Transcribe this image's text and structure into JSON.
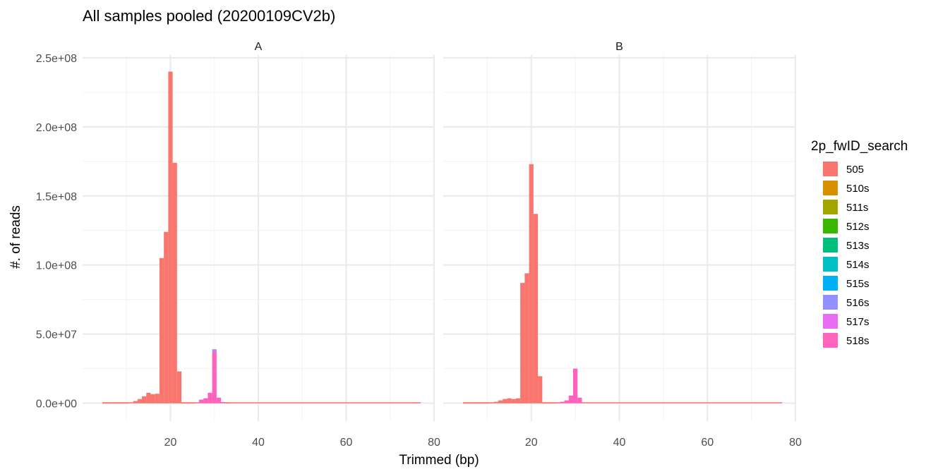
{
  "chart_data": {
    "type": "bar",
    "title": "All samples pooled (20200109CV2b)",
    "xlabel": "Trimmed (bp)",
    "ylabel": "#. of reads",
    "xlim": [
      0,
      80
    ],
    "ylim": [
      -13000000.0,
      252000000.0
    ],
    "x_ticks": [
      20,
      40,
      60,
      80
    ],
    "x_tick_labels": [
      "20",
      "40",
      "60",
      "80"
    ],
    "y_ticks": [
      0,
      50000000,
      100000000,
      150000000,
      200000000,
      250000000
    ],
    "y_tick_labels": [
      "0.0e+00",
      "5.0e+07",
      "1.0e+08",
      "1.5e+08",
      "2.0e+08",
      "2.5e+08"
    ],
    "grid": true,
    "legend": {
      "title": "2p_fwID_search",
      "placement": "right",
      "entries": [
        {
          "label": "505",
          "color": "#F8766D"
        },
        {
          "label": "510s",
          "color": "#D89000"
        },
        {
          "label": "511s",
          "color": "#A3A500"
        },
        {
          "label": "512s",
          "color": "#39B600"
        },
        {
          "label": "513s",
          "color": "#00BF7D"
        },
        {
          "label": "514s",
          "color": "#00BFC4"
        },
        {
          "label": "515s",
          "color": "#00B0F6"
        },
        {
          "label": "516s",
          "color": "#9590FF"
        },
        {
          "label": "517s",
          "color": "#E76BF3"
        },
        {
          "label": "518s",
          "color": "#FF62BC"
        }
      ]
    },
    "bin_width": 1,
    "panels": [
      {
        "name": "A",
        "bars": [
          {
            "x": 5,
            "value": 200000,
            "series": "505"
          },
          {
            "x": 6,
            "value": 200000,
            "series": "505"
          },
          {
            "x": 7,
            "value": 200000,
            "series": "505"
          },
          {
            "x": 8,
            "value": 200000,
            "series": "505"
          },
          {
            "x": 9,
            "value": 200000,
            "series": "505"
          },
          {
            "x": 10,
            "value": 200000,
            "series": "505"
          },
          {
            "x": 11,
            "value": 500000,
            "series": "505"
          },
          {
            "x": 12,
            "value": 1500000,
            "series": "505"
          },
          {
            "x": 13,
            "value": 3000000,
            "series": "505"
          },
          {
            "x": 14,
            "value": 5000000,
            "series": "505"
          },
          {
            "x": 15,
            "value": 7500000,
            "series": "505"
          },
          {
            "x": 16,
            "value": 6500000,
            "series": "505"
          },
          {
            "x": 17,
            "value": 6800000,
            "series": "505"
          },
          {
            "x": 18,
            "value": 105000000,
            "series": "505"
          },
          {
            "x": 19,
            "value": 124000000,
            "series": "505"
          },
          {
            "x": 20,
            "value": 240000000,
            "series": "505"
          },
          {
            "x": 21,
            "value": 174000000,
            "series": "505"
          },
          {
            "x": 22,
            "value": 23000000,
            "series": "505"
          },
          {
            "x": 23,
            "value": 200000,
            "series": "505"
          },
          {
            "x": 24,
            "value": 200000,
            "series": "505"
          },
          {
            "x": 25,
            "value": 200000,
            "series": "505"
          },
          {
            "x": 26,
            "value": 500000,
            "series": "505"
          },
          {
            "x": 27,
            "value": 2500000,
            "series": "518s"
          },
          {
            "x": 28,
            "value": 3500000,
            "series": "518s"
          },
          {
            "x": 29,
            "value": 7500000,
            "series": "518s"
          },
          {
            "x": 30,
            "value": 37500000,
            "series": "518s",
            "stack_top": {
              "value": 1500000,
              "series": "516s"
            }
          },
          {
            "x": 31,
            "value": 4000000,
            "series": "518s"
          },
          {
            "x": 32,
            "value": 800000,
            "series": "518s"
          },
          {
            "x": 33,
            "value": 300000,
            "series": "505"
          },
          {
            "x": 76,
            "value": 600000,
            "series": "505"
          }
        ],
        "baseline_from": 5,
        "baseline_to": 77
      },
      {
        "name": "B",
        "bars": [
          {
            "x": 5,
            "value": 200000,
            "series": "505"
          },
          {
            "x": 6,
            "value": 200000,
            "series": "505"
          },
          {
            "x": 7,
            "value": 200000,
            "series": "505"
          },
          {
            "x": 8,
            "value": 200000,
            "series": "505"
          },
          {
            "x": 9,
            "value": 200000,
            "series": "505"
          },
          {
            "x": 10,
            "value": 200000,
            "series": "505"
          },
          {
            "x": 11,
            "value": 400000,
            "series": "505"
          },
          {
            "x": 12,
            "value": 1000000,
            "series": "505"
          },
          {
            "x": 13,
            "value": 2000000,
            "series": "505"
          },
          {
            "x": 14,
            "value": 3000000,
            "series": "505"
          },
          {
            "x": 15,
            "value": 3500000,
            "series": "505"
          },
          {
            "x": 16,
            "value": 3000000,
            "series": "505"
          },
          {
            "x": 17,
            "value": 3500000,
            "series": "505"
          },
          {
            "x": 18,
            "value": 87000000,
            "series": "505"
          },
          {
            "x": 19,
            "value": 94000000,
            "series": "505"
          },
          {
            "x": 20,
            "value": 173000000,
            "series": "505"
          },
          {
            "x": 21,
            "value": 137000000,
            "series": "505"
          },
          {
            "x": 22,
            "value": 19500000,
            "series": "505"
          },
          {
            "x": 23,
            "value": 200000,
            "series": "505"
          },
          {
            "x": 24,
            "value": 200000,
            "series": "505"
          },
          {
            "x": 25,
            "value": 200000,
            "series": "505"
          },
          {
            "x": 26,
            "value": 400000,
            "series": "505"
          },
          {
            "x": 27,
            "value": 1000000,
            "series": "518s"
          },
          {
            "x": 28,
            "value": 2000000,
            "series": "518s"
          },
          {
            "x": 29,
            "value": 5500000,
            "series": "518s"
          },
          {
            "x": 30,
            "value": 25000000,
            "series": "518s"
          },
          {
            "x": 31,
            "value": 4000000,
            "series": "518s"
          },
          {
            "x": 32,
            "value": 500000,
            "series": "505"
          }
        ],
        "baseline_from": 5,
        "baseline_to": 77
      }
    ]
  }
}
